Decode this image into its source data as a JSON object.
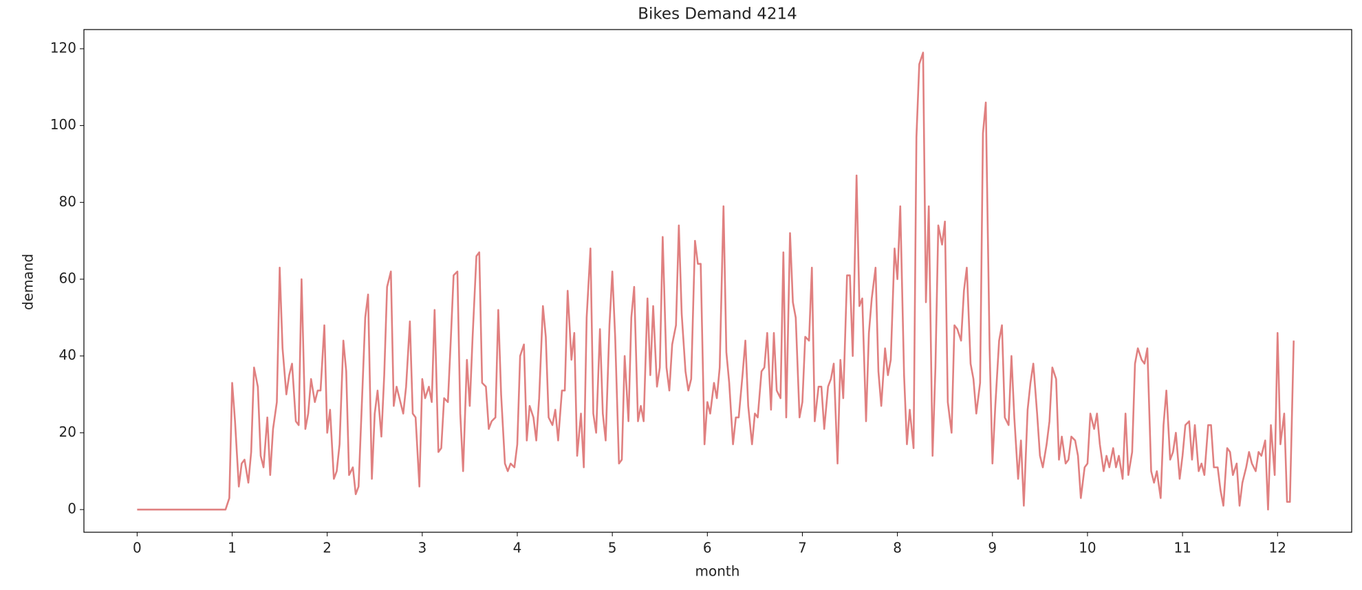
{
  "chart_data": {
    "type": "line",
    "title": "Bikes Demand 4214",
    "xlabel": "month",
    "ylabel": "demand",
    "color": "#e08080",
    "xlim": [
      -0.56,
      12.78
    ],
    "ylim": [
      -5.9,
      125
    ],
    "xticks": [
      0,
      1,
      2,
      3,
      4,
      5,
      6,
      7,
      8,
      9,
      10,
      11,
      12
    ],
    "yticks": [
      0,
      20,
      40,
      60,
      80,
      100,
      120
    ],
    "x": [
      0,
      0.93,
      0.97,
      1.0,
      1.03,
      1.07,
      1.1,
      1.13,
      1.17,
      1.2,
      1.23,
      1.27,
      1.3,
      1.33,
      1.37,
      1.4,
      1.43,
      1.47,
      1.5,
      1.53,
      1.57,
      1.6,
      1.63,
      1.67,
      1.7,
      1.73,
      1.77,
      1.8,
      1.83,
      1.87,
      1.9,
      1.93,
      1.97,
      2.0,
      2.03,
      2.07,
      2.1,
      2.13,
      2.17,
      2.2,
      2.23,
      2.27,
      2.3,
      2.33,
      2.37,
      2.4,
      2.43,
      2.47,
      2.5,
      2.53,
      2.57,
      2.6,
      2.63,
      2.67,
      2.7,
      2.73,
      2.77,
      2.8,
      2.83,
      2.87,
      2.9,
      2.93,
      2.97,
      3.0,
      3.03,
      3.07,
      3.1,
      3.13,
      3.17,
      3.2,
      3.23,
      3.27,
      3.3,
      3.33,
      3.37,
      3.4,
      3.43,
      3.47,
      3.5,
      3.53,
      3.57,
      3.6,
      3.63,
      3.67,
      3.7,
      3.73,
      3.77,
      3.8,
      3.83,
      3.87,
      3.9,
      3.93,
      3.97,
      4.0,
      4.03,
      4.07,
      4.1,
      4.13,
      4.17,
      4.2,
      4.23,
      4.27,
      4.3,
      4.33,
      4.37,
      4.4,
      4.43,
      4.47,
      4.5,
      4.53,
      4.57,
      4.6,
      4.63,
      4.67,
      4.7,
      4.73,
      4.77,
      4.8,
      4.83,
      4.87,
      4.9,
      4.93,
      4.97,
      5.0,
      5.03,
      5.07,
      5.1,
      5.13,
      5.17,
      5.2,
      5.23,
      5.27,
      5.3,
      5.33,
      5.37,
      5.4,
      5.43,
      5.47,
      5.5,
      5.53,
      5.57,
      5.6,
      5.63,
      5.67,
      5.7,
      5.73,
      5.77,
      5.8,
      5.83,
      5.87,
      5.9,
      5.93,
      5.97,
      6.0,
      6.03,
      6.07,
      6.1,
      6.13,
      6.17,
      6.2,
      6.23,
      6.27,
      6.3,
      6.33,
      6.37,
      6.4,
      6.43,
      6.47,
      6.5,
      6.53,
      6.57,
      6.6,
      6.63,
      6.67,
      6.7,
      6.73,
      6.77,
      6.8,
      6.83,
      6.87,
      6.9,
      6.93,
      6.97,
      7.0,
      7.03,
      7.07,
      7.1,
      7.13,
      7.17,
      7.2,
      7.23,
      7.27,
      7.3,
      7.33,
      7.37,
      7.4,
      7.43,
      7.47,
      7.5,
      7.53,
      7.57,
      7.6,
      7.63,
      7.67,
      7.7,
      7.73,
      7.77,
      7.8,
      7.83,
      7.87,
      7.9,
      7.93,
      7.97,
      8.0,
      8.03,
      8.07,
      8.1,
      8.13,
      8.17,
      8.2,
      8.23,
      8.27,
      8.3,
      8.33,
      8.37,
      8.4,
      8.43,
      8.47,
      8.5,
      8.53,
      8.57,
      8.6,
      8.63,
      8.67,
      8.7,
      8.73,
      8.77,
      8.8,
      8.83,
      8.87,
      8.9,
      8.93,
      8.97,
      9.0,
      9.03,
      9.07,
      9.1,
      9.13,
      9.17,
      9.2,
      9.23,
      9.27,
      9.3,
      9.33,
      9.37,
      9.4,
      9.43,
      9.47,
      9.5,
      9.53,
      9.57,
      9.6,
      9.63,
      9.67,
      9.7,
      9.73,
      9.77,
      9.8,
      9.83,
      9.87,
      9.9,
      9.93,
      9.97,
      10.0,
      10.03,
      10.07,
      10.1,
      10.13,
      10.17,
      10.2,
      10.23,
      10.27,
      10.3,
      10.33,
      10.37,
      10.4,
      10.43,
      10.47,
      10.5,
      10.53,
      10.57,
      10.6,
      10.63,
      10.67,
      10.7,
      10.73,
      10.77,
      10.8,
      10.83,
      10.87,
      10.9,
      10.93,
      10.97,
      11.0,
      11.03,
      11.07,
      11.1,
      11.13,
      11.17,
      11.2,
      11.23,
      11.27,
      11.3,
      11.33,
      11.37,
      11.4,
      11.43,
      11.47,
      11.5,
      11.53,
      11.57,
      11.6,
      11.63,
      11.67,
      11.7,
      11.73,
      11.77,
      11.8,
      11.83,
      11.87,
      11.9,
      11.93,
      11.97,
      12.0,
      12.03,
      12.07,
      12.1,
      12.13,
      12.17
    ],
    "values": [
      0,
      0,
      3,
      33,
      23,
      6,
      12,
      13,
      7,
      15,
      37,
      32,
      14,
      11,
      24,
      9,
      21,
      28,
      63,
      42,
      30,
      35,
      38,
      23,
      22,
      60,
      21,
      25,
      34,
      28,
      31,
      31,
      48,
      20,
      26,
      8,
      10,
      17,
      44,
      36,
      9,
      11,
      4,
      6,
      31,
      50,
      56,
      8,
      25,
      31,
      19,
      35,
      58,
      62,
      27,
      32,
      28,
      25,
      32,
      49,
      25,
      24,
      6,
      34,
      29,
      32,
      28,
      52,
      15,
      16,
      29,
      28,
      44,
      61,
      62,
      25,
      10,
      39,
      27,
      45,
      66,
      67,
      33,
      32,
      21,
      23,
      24,
      52,
      30,
      12,
      10,
      12,
      11,
      17,
      40,
      43,
      18,
      27,
      24,
      18,
      29,
      53,
      45,
      24,
      22,
      26,
      18,
      31,
      31,
      57,
      39,
      46,
      14,
      25,
      11,
      50,
      68,
      25,
      20,
      47,
      25,
      18,
      48,
      62,
      45,
      12,
      13,
      40,
      23,
      50,
      58,
      23,
      27,
      23,
      55,
      35,
      53,
      32,
      37,
      71,
      37,
      31,
      43,
      48,
      74,
      51,
      36,
      31,
      34,
      70,
      64,
      64,
      17,
      28,
      25,
      33,
      29,
      37,
      79,
      41,
      33,
      17,
      24,
      24,
      35,
      44,
      27,
      17,
      25,
      24,
      36,
      37,
      46,
      26,
      46,
      31,
      29,
      67,
      24,
      72,
      54,
      50,
      24,
      28,
      45,
      44,
      63,
      23,
      32,
      32,
      21,
      32,
      34,
      38,
      12,
      39,
      29,
      61,
      61,
      40,
      87,
      53,
      55,
      23,
      46,
      55,
      63,
      36,
      27,
      42,
      35,
      39,
      68,
      60,
      79,
      35,
      17,
      26,
      16,
      97,
      116,
      119,
      54,
      79,
      14,
      37,
      74,
      69,
      75,
      28,
      20,
      48,
      47,
      44,
      57,
      63,
      38,
      34,
      25,
      33,
      98,
      106,
      42,
      12,
      27,
      44,
      48,
      24,
      22,
      40,
      24,
      8,
      18,
      1,
      26,
      33,
      38,
      25,
      14,
      11,
      17,
      23,
      37,
      34,
      13,
      19,
      12,
      13,
      19,
      18,
      14,
      3,
      11,
      12,
      25,
      21,
      25,
      17,
      10,
      14,
      11,
      16,
      11,
      14,
      8,
      25,
      9,
      15,
      38,
      42,
      39,
      38,
      42,
      10,
      7,
      10,
      3,
      22,
      31,
      13,
      15,
      20,
      8,
      14,
      22,
      23,
      13,
      22,
      10,
      12,
      9,
      22,
      22,
      11,
      11,
      5,
      1,
      16,
      15,
      9,
      12,
      1,
      7,
      11,
      15,
      12,
      10,
      15,
      14,
      18,
      0,
      22,
      9,
      46,
      17,
      25,
      2,
      2,
      44
    ]
  }
}
